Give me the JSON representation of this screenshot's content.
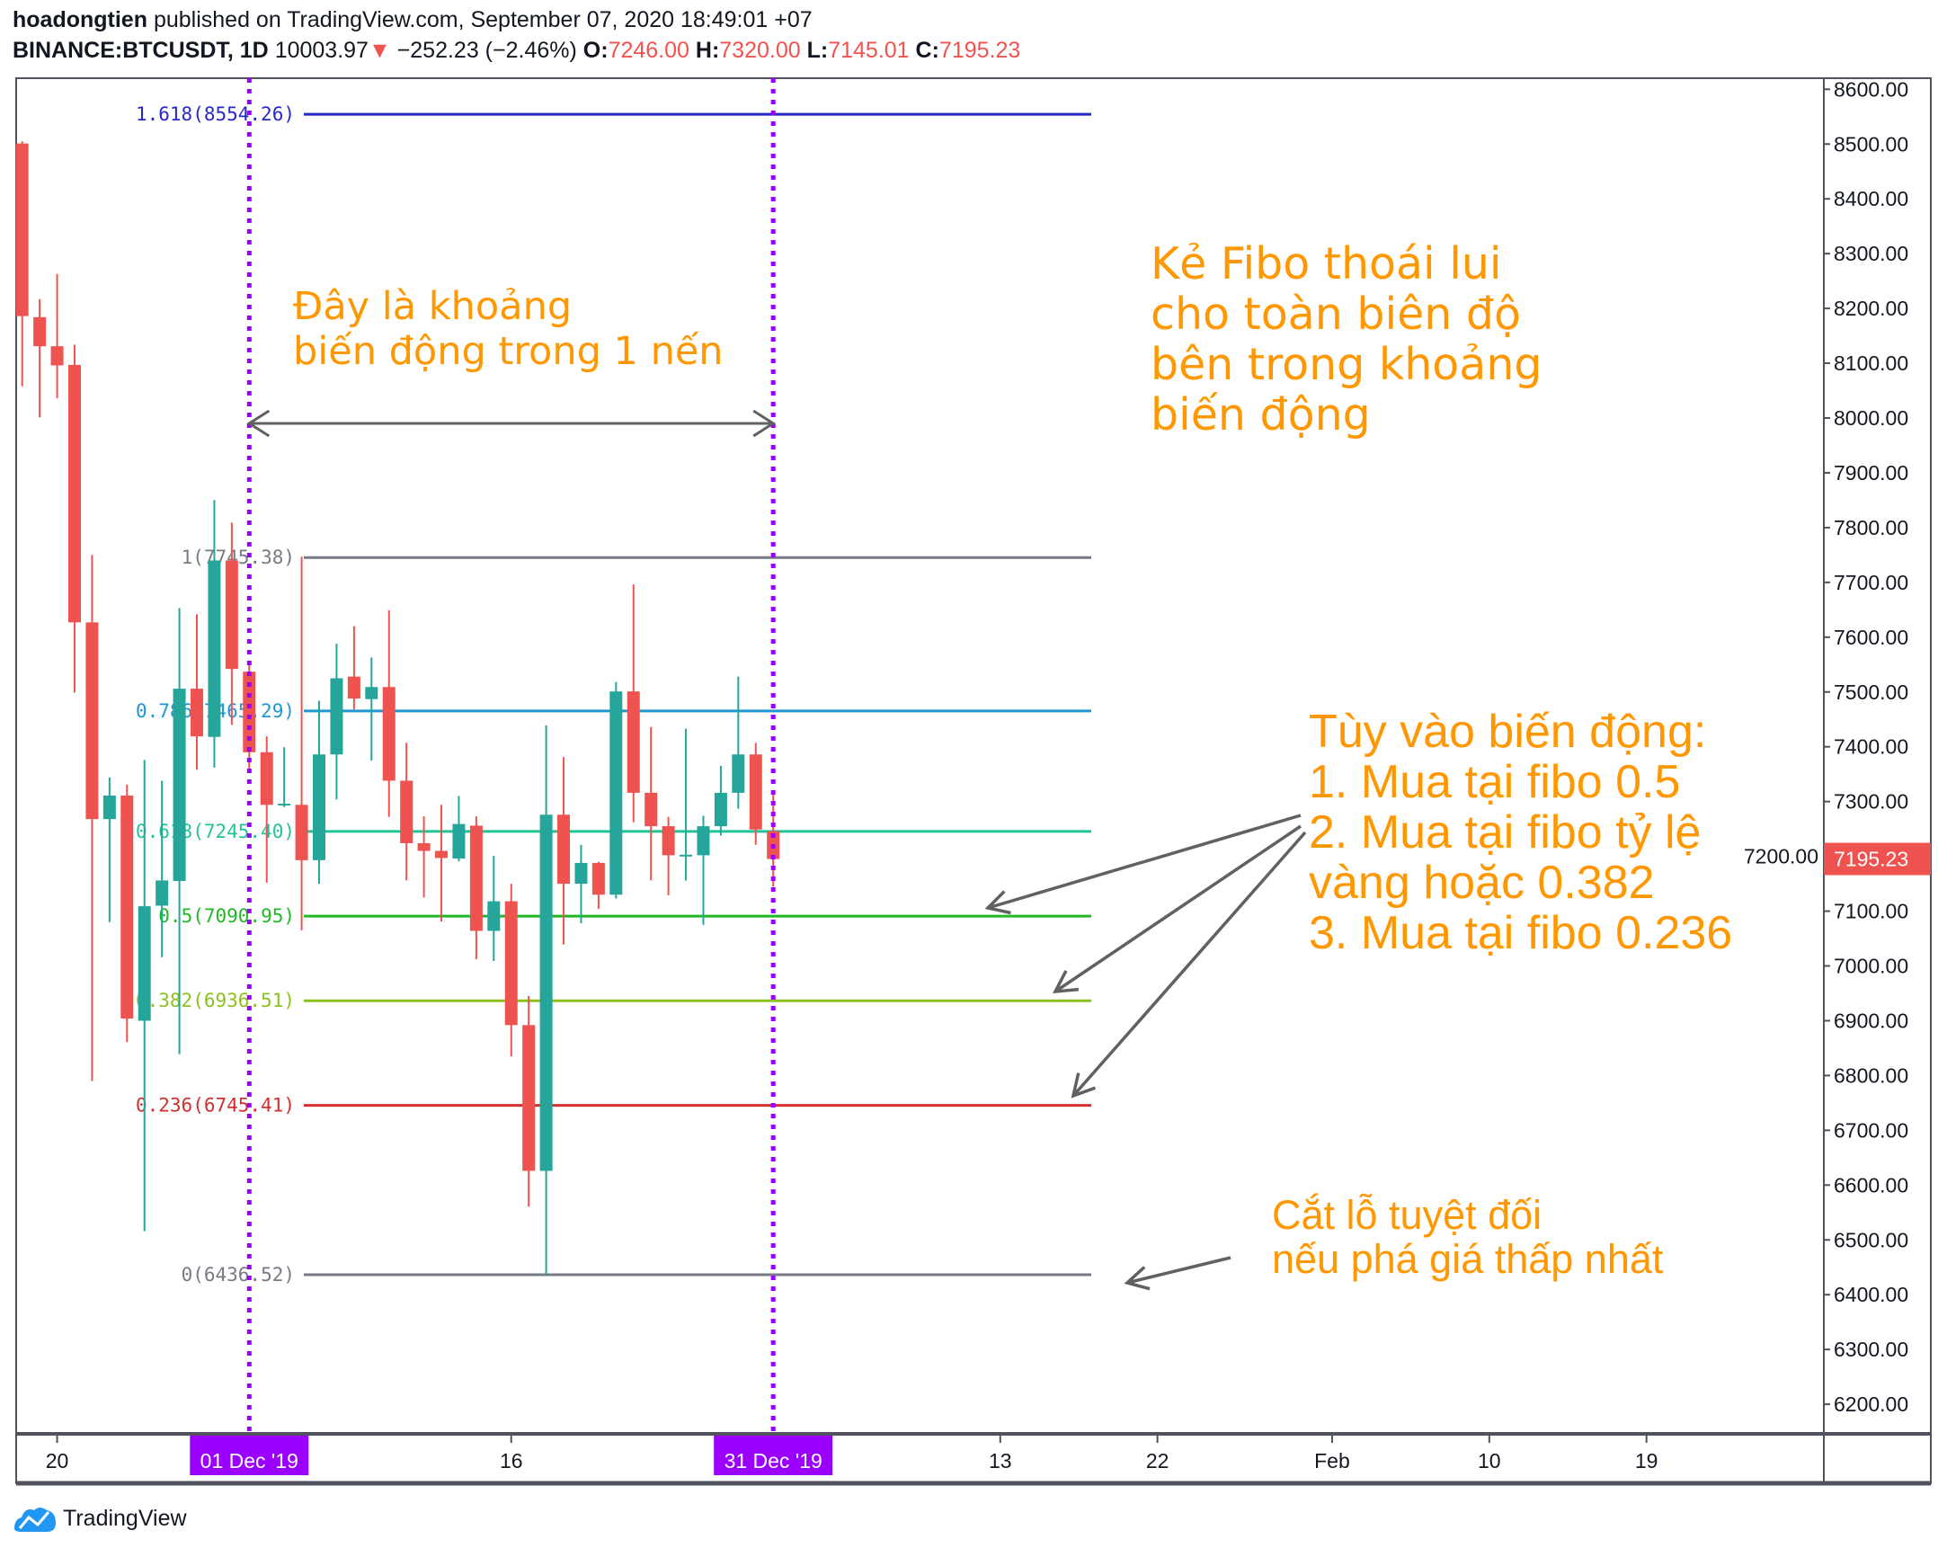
{
  "header": {
    "author": "hoadongtien",
    "published": "published on TradingView.com, September 07, 2020 18:49:01 +07",
    "symbol": "BINANCE:BTCUSDT, 1D",
    "price": "10003.97",
    "change_icon": "triangle-down-icon",
    "change": "−252.23 (−2.46%)",
    "o_label": "O:",
    "o": "7246.00",
    "h_label": "H:",
    "h": "7320.00",
    "l_label": "L:",
    "l": "7145.01",
    "c_label": "C:",
    "c": "7195.23"
  },
  "colors": {
    "up": "#26a69a",
    "down": "#ef5350",
    "vertical_marker": "#9b00ff",
    "annotation": "#ff9800",
    "arrow": "#616161",
    "last_price": "#ef5350"
  },
  "chart_data": {
    "type": "candlestick",
    "ylim": [
      6150,
      8650
    ],
    "price_ticks": [
      "6200.00",
      "6300.00",
      "6400.00",
      "6500.00",
      "6600.00",
      "6700.00",
      "6800.00",
      "6900.00",
      "7000.00",
      "7100.00",
      "7200.00",
      "7300.00",
      "7400.00",
      "7500.00",
      "7600.00",
      "7700.00",
      "7800.00",
      "7900.00",
      "8000.00",
      "8100.00",
      "8200.00",
      "8300.00",
      "8400.00",
      "8500.00",
      "8600.00"
    ],
    "last_price": "7195.23",
    "time_ticks": [
      {
        "label": "20"
      },
      {
        "label": "01 Dec '19",
        "highlight": true
      },
      {
        "label": "16"
      },
      {
        "label": "31 Dec '19",
        "highlight": true
      },
      {
        "label": "13"
      },
      {
        "label": "22"
      },
      {
        "label": "Feb"
      },
      {
        "label": "10"
      },
      {
        "label": "19"
      }
    ],
    "candles": [
      [
        8501,
        8505,
        8058,
        8186
      ],
      [
        8184,
        8217,
        8001,
        8131
      ],
      [
        8131,
        8263,
        8036,
        8096
      ],
      [
        8097,
        8134,
        7499,
        7627
      ],
      [
        7627,
        7750,
        6790,
        7268
      ],
      [
        7268,
        7344,
        7080,
        7311
      ],
      [
        7311,
        7331,
        6861,
        6904
      ],
      [
        6900,
        7376,
        6516,
        7109
      ],
      [
        7110,
        7338,
        7016,
        7156
      ],
      [
        7155,
        7653,
        6839,
        7506
      ],
      [
        7506,
        7642,
        7358,
        7419
      ],
      [
        7418,
        7850,
        7362,
        7740
      ],
      [
        7740,
        7809,
        7440,
        7542
      ],
      [
        7537,
        7550,
        7360,
        7390
      ],
      [
        7390,
        7419,
        7152,
        7294
      ],
      [
        7294,
        7399,
        7290,
        7296
      ],
      [
        7294,
        7747,
        7065,
        7193
      ],
      [
        7193,
        7484,
        7150,
        7386
      ],
      [
        7386,
        7588,
        7304,
        7525
      ],
      [
        7528,
        7620,
        7468,
        7488
      ],
      [
        7487,
        7563,
        7375,
        7509
      ],
      [
        7509,
        7649,
        7272,
        7338
      ],
      [
        7338,
        7407,
        7156,
        7224
      ],
      [
        7224,
        7273,
        7125,
        7210
      ],
      [
        7210,
        7294,
        7081,
        7197
      ],
      [
        7196,
        7310,
        7191,
        7259
      ],
      [
        7256,
        7273,
        7012,
        7064
      ],
      [
        7064,
        7201,
        7009,
        7118
      ],
      [
        7118,
        7150,
        6835,
        6892
      ],
      [
        6892,
        6945,
        6561,
        6626
      ],
      [
        6626,
        7439,
        6436.52,
        7276
      ],
      [
        7276,
        7381,
        7039,
        7150
      ],
      [
        7150,
        7221,
        7078,
        7188
      ],
      [
        7188,
        7190,
        7104,
        7130
      ],
      [
        7130,
        7518,
        7123,
        7501
      ],
      [
        7501,
        7696,
        7262,
        7316
      ],
      [
        7316,
        7436,
        7156,
        7255
      ],
      [
        7255,
        7272,
        7129,
        7202
      ],
      [
        7202,
        7433,
        7156,
        7203
      ],
      [
        7202,
        7274,
        7075,
        7255
      ],
      [
        7255,
        7365,
        7238,
        7316
      ],
      [
        7316,
        7528,
        7287,
        7386
      ],
      [
        7386,
        7407,
        7221,
        7249
      ],
      [
        7246,
        7320,
        7145.01,
        7195.23
      ]
    ],
    "fib_levels": [
      {
        "label": "1.618(8554.26)",
        "price": 8554.26,
        "color": "#2828c8"
      },
      {
        "label": "1(7745.38)",
        "price": 7745.38,
        "color": "#787b86"
      },
      {
        "label": "0.786(7465.29)",
        "price": 7465.29,
        "color": "#2196d3"
      },
      {
        "label": "0.618(7245.40)",
        "price": 7245.4,
        "color": "#22c497"
      },
      {
        "label": "0.5(7090.95)",
        "price": 7090.95,
        "color": "#22b827"
      },
      {
        "label": "0.382(6936.51)",
        "price": 6936.51,
        "color": "#8bc21e"
      },
      {
        "label": "0.236(6745.41)",
        "price": 6745.41,
        "color": "#d32f2f"
      },
      {
        "label": "0(6436.52)",
        "price": 6436.52,
        "color": "#787b86"
      }
    ]
  },
  "annotations": {
    "range_note": [
      "Đây là khoảng",
      "biến động trong 1 nến"
    ],
    "fibo_note": [
      "Kẻ Fibo thoái lui",
      "cho toàn biên độ",
      "bên trong khoảng",
      "biến động"
    ],
    "buy_note": [
      "Tùy vào biến động:",
      "1. Mua tại fibo 0.5",
      "2. Mua tại fibo tỷ lệ",
      "vàng hoặc 0.382",
      "3. Mua tại fibo 0.236"
    ],
    "stop_note": [
      "Cắt lỗ tuyệt đối",
      "nếu phá giá thấp nhất"
    ]
  },
  "footer": {
    "logo_text": "TradingView",
    "logo_icon": "tradingview-logo-icon"
  }
}
